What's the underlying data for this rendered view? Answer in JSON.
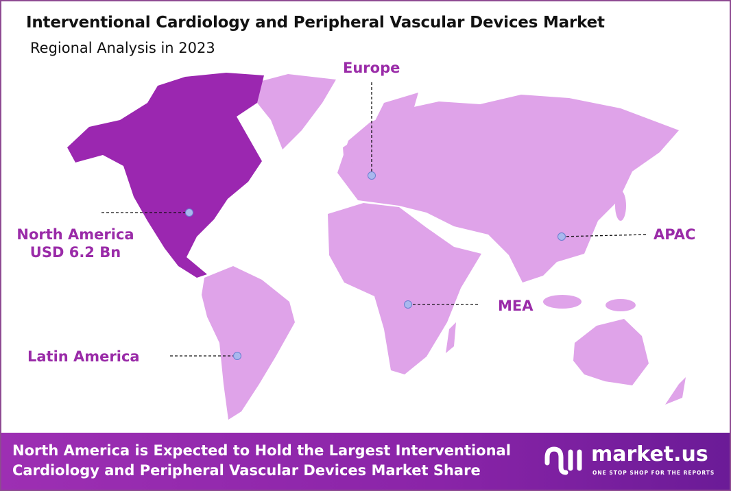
{
  "header": {
    "title": "Interventional Cardiology and Peripheral Vascular Devices Market",
    "subtitle": "Regional Analysis in 2023"
  },
  "regions": {
    "europe": "Europe",
    "north_america": "North America",
    "north_america_value": "USD 6.2 Bn",
    "apac": "APAC",
    "mea": "MEA",
    "latin_america": "Latin America"
  },
  "highlighted_region": "North America",
  "colors": {
    "highlight": "#9b27b0",
    "land": "#dfa3e9",
    "label": "#9a2ba8",
    "marker": "#a9b8ee",
    "footer": "#8a24a8"
  },
  "footer": {
    "text_line1": "North America is Expected to Hold the Largest Interventional",
    "text_line2": "Cardiology and Peripheral Vascular Devices Market Share",
    "logo_name": "market.us",
    "logo_tagline": "ONE STOP SHOP FOR THE REPORTS"
  }
}
